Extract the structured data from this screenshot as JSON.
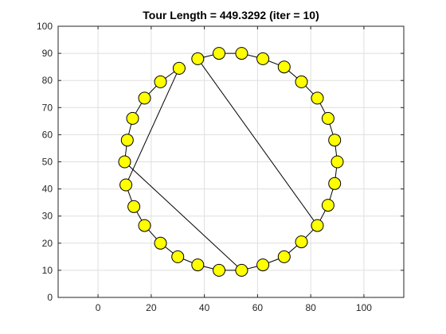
{
  "chart_data": {
    "type": "scatter",
    "title": "Tour Length = 449.3292 (iter = 10)",
    "xlabel": "",
    "ylabel": "",
    "xlim": [
      -15,
      115
    ],
    "ylim": [
      0,
      100
    ],
    "x_ticks": [
      0,
      20,
      40,
      60,
      80,
      100
    ],
    "y_ticks": [
      0,
      10,
      20,
      30,
      40,
      50,
      60,
      70,
      80,
      90,
      100
    ],
    "grid": true,
    "marker_color": "#ffff00",
    "line_color": "#000000",
    "series": [
      {
        "points": [
          [
            54.0,
            10.0
          ],
          [
            10.0,
            50.0
          ],
          [
            11.0,
            58.0
          ],
          [
            13.0,
            66.0
          ],
          [
            17.5,
            73.5
          ],
          [
            23.5,
            79.5
          ],
          [
            30.5,
            84.5
          ],
          [
            10.5,
            41.5
          ],
          [
            13.5,
            33.5
          ],
          [
            17.5,
            26.5
          ],
          [
            23.5,
            20.0
          ],
          [
            30.0,
            15.0
          ],
          [
            37.5,
            12.0
          ],
          [
            45.5,
            10.0
          ],
          [
            54.0,
            10.0
          ],
          [
            62.0,
            12.0
          ],
          [
            70.0,
            15.0
          ],
          [
            76.5,
            20.5
          ],
          [
            82.5,
            26.5
          ],
          [
            37.5,
            88.0
          ],
          [
            45.5,
            90.0
          ],
          [
            54.0,
            90.0
          ],
          [
            62.0,
            88.0
          ],
          [
            70.0,
            85.0
          ],
          [
            76.5,
            79.5
          ],
          [
            82.5,
            73.5
          ],
          [
            86.5,
            66.0
          ],
          [
            89.0,
            58.0
          ],
          [
            90.0,
            50.0
          ],
          [
            89.0,
            42.0
          ],
          [
            86.5,
            34.0
          ],
          [
            82.5,
            26.5
          ]
        ]
      }
    ]
  }
}
